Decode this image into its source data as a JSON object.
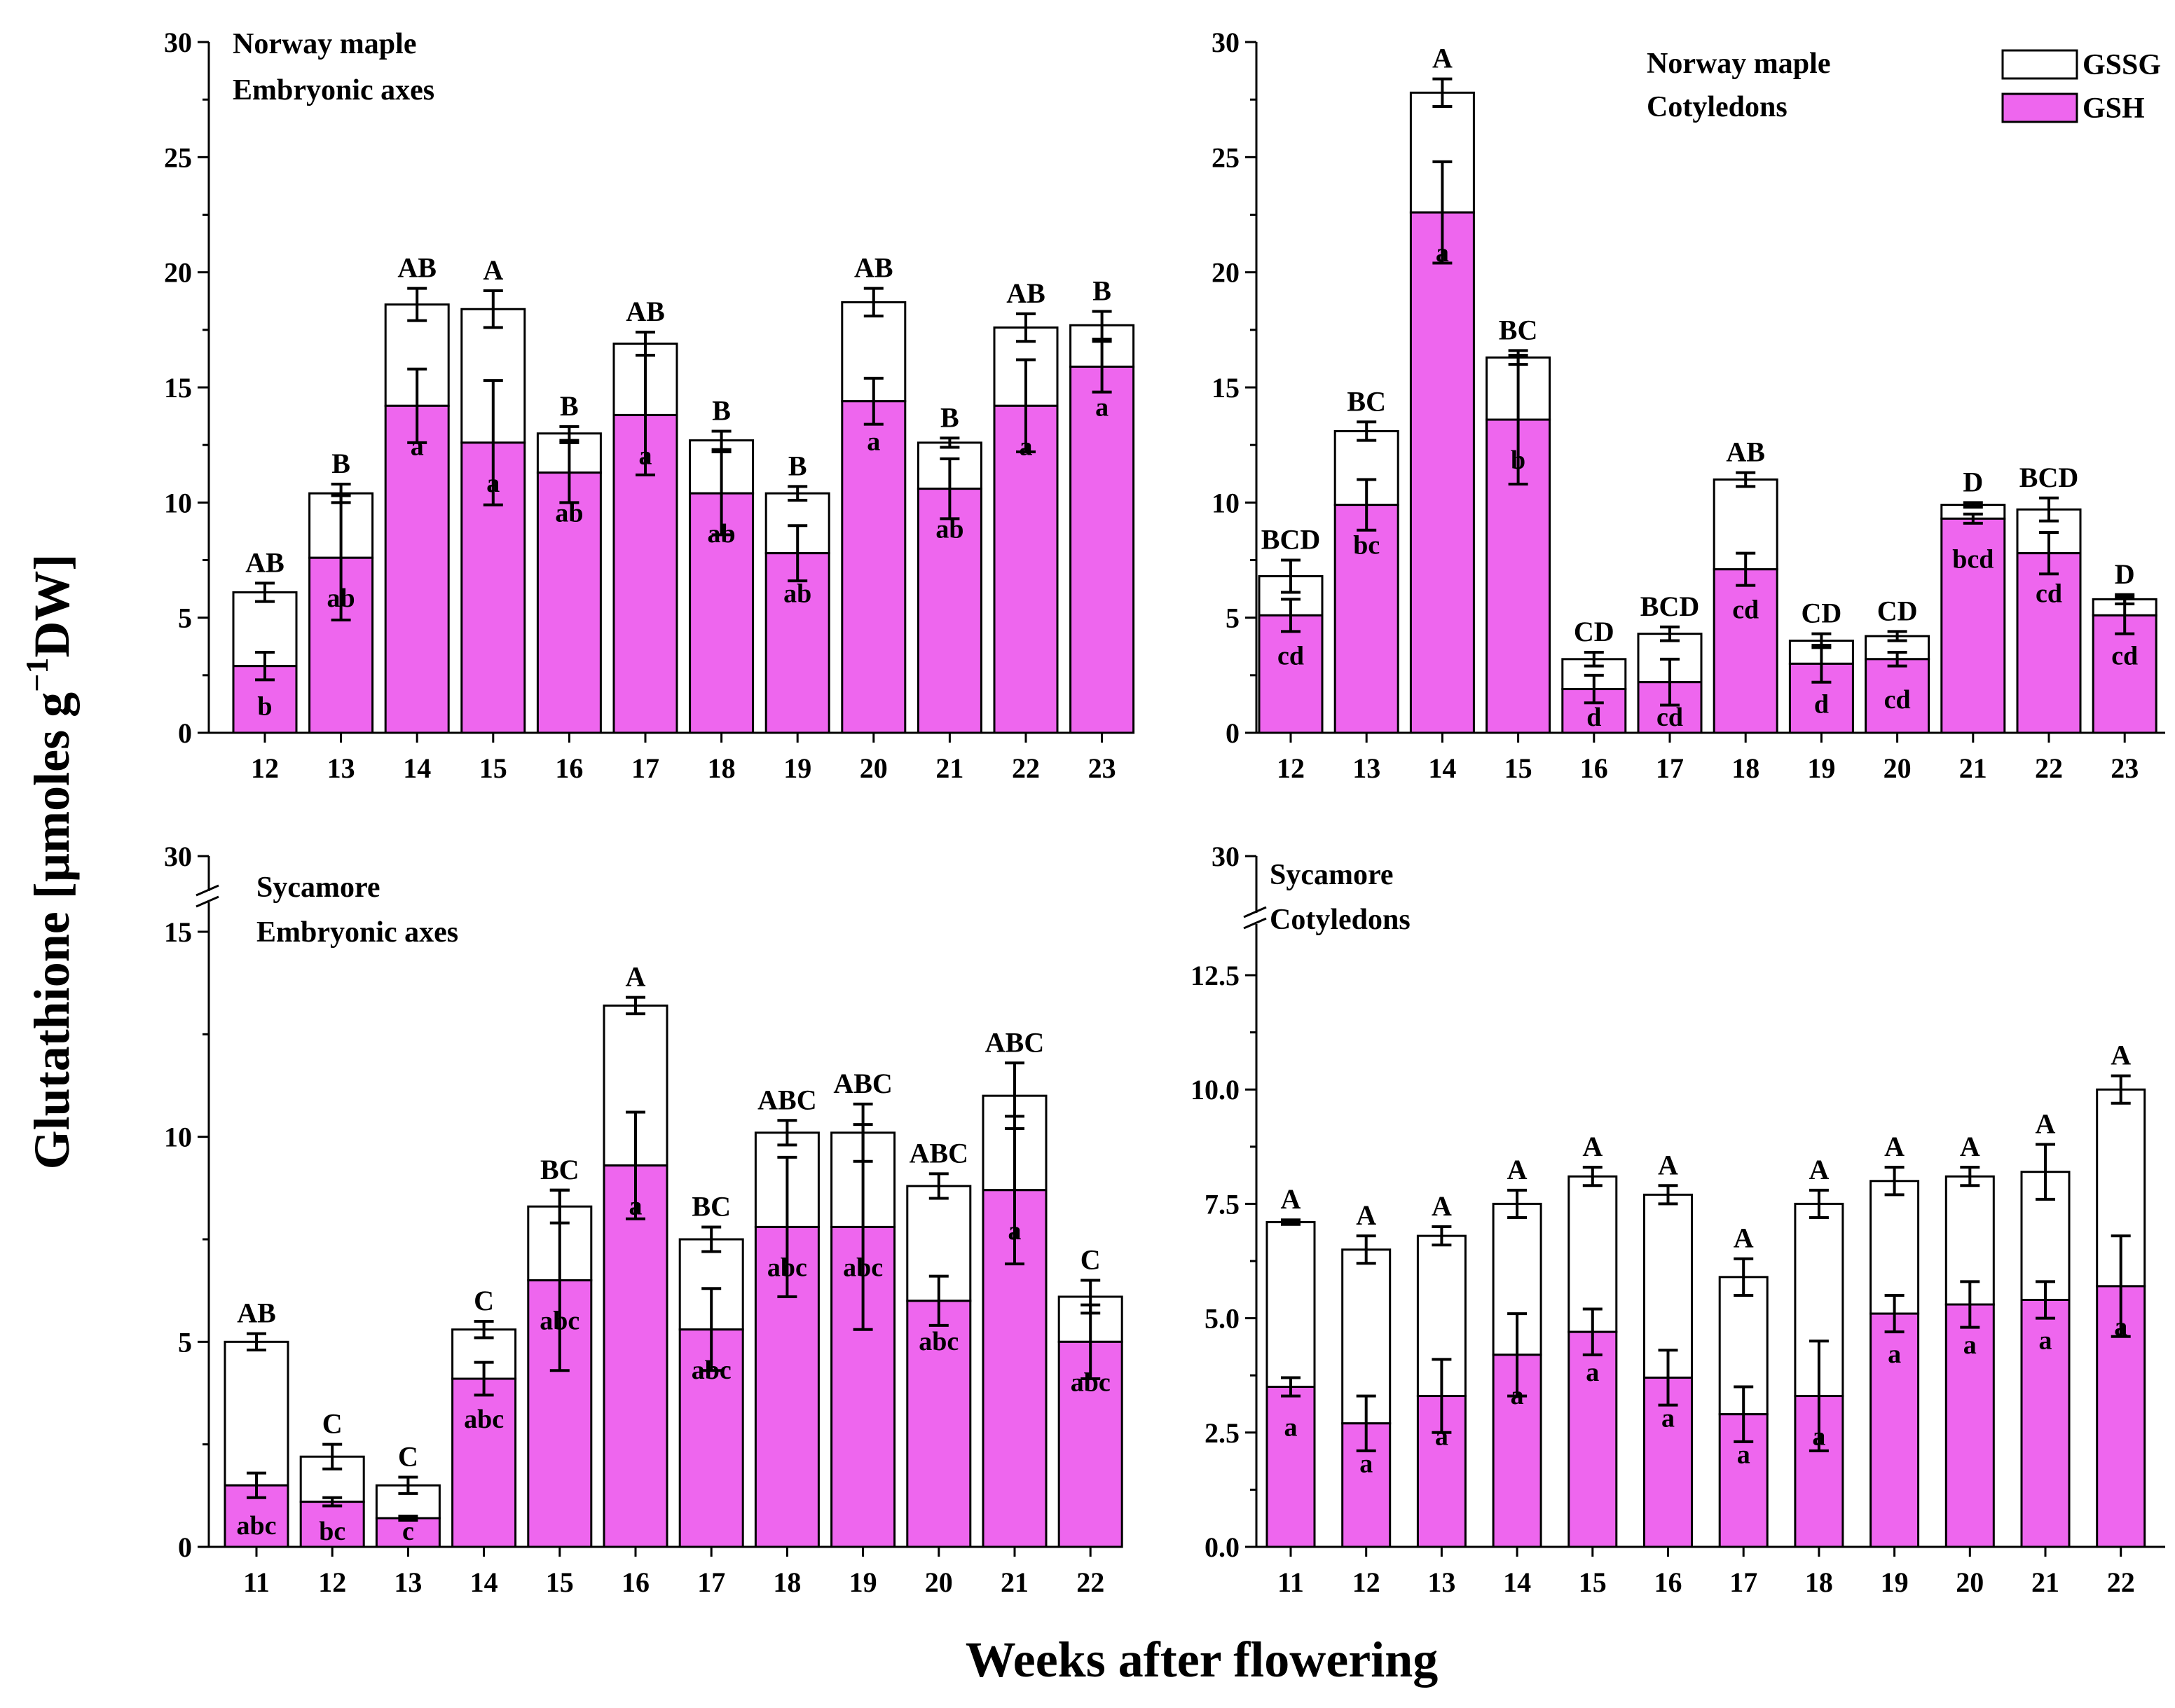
{
  "y_axis_title": {
    "prefix": "Glutathione [µmoles g",
    "sup": "−1",
    "suffix": "DW]"
  },
  "x_axis_title": "Weeks after flowering",
  "legend": {
    "items": [
      {
        "label": "GSSG",
        "color": "#ffffff"
      },
      {
        "label": "GSH",
        "color": "#ee66ee"
      }
    ]
  },
  "colors": {
    "gsh": "#ee66ee",
    "gssg": "#ffffff",
    "axis": "#000000"
  },
  "chart_data": [
    {
      "id": "nm-axes",
      "type": "bar",
      "stacked": true,
      "title": [
        "Norway maple",
        "Embryonic axes"
      ],
      "categories": [
        "12",
        "13",
        "14",
        "15",
        "16",
        "17",
        "18",
        "19",
        "20",
        "21",
        "22",
        "23"
      ],
      "ylim": [
        0,
        30
      ],
      "yticks": [
        0,
        5,
        10,
        15,
        20,
        25,
        30
      ],
      "ytick_labels": [
        "0",
        "5",
        "10",
        "15",
        "20",
        "25",
        "30"
      ],
      "axis_break": false,
      "series": [
        {
          "name": "GSH",
          "values": [
            2.9,
            7.6,
            14.2,
            12.6,
            11.3,
            13.8,
            10.4,
            7.8,
            14.4,
            10.6,
            14.2,
            15.9
          ],
          "errors": [
            0.6,
            2.7,
            1.6,
            2.7,
            1.3,
            2.6,
            1.8,
            1.2,
            1.0,
            1.3,
            2.0,
            1.1
          ],
          "labels": [
            "b",
            "ab",
            "a",
            "a",
            "ab",
            "a",
            "ab",
            "ab",
            "a",
            "ab",
            "a",
            "a"
          ]
        },
        {
          "name": "GSSG",
          "totals": [
            6.1,
            10.4,
            18.6,
            18.4,
            13.0,
            16.9,
            12.7,
            10.4,
            18.7,
            12.6,
            17.6,
            17.7
          ],
          "errors": [
            0.4,
            0.4,
            0.7,
            0.8,
            0.3,
            0.5,
            0.4,
            0.3,
            0.6,
            0.2,
            0.6,
            0.6
          ],
          "labels": [
            "AB",
            "B",
            "AB",
            "A",
            "B",
            "AB",
            "B",
            "B",
            "AB",
            "B",
            "AB",
            "B"
          ]
        }
      ]
    },
    {
      "id": "nm-cot",
      "type": "bar",
      "stacked": true,
      "title": [
        "Norway maple",
        "Cotyledons"
      ],
      "categories": [
        "12",
        "13",
        "14",
        "15",
        "16",
        "17",
        "18",
        "19",
        "20",
        "21",
        "22",
        "23"
      ],
      "ylim": [
        0,
        30
      ],
      "yticks": [
        0,
        5,
        10,
        15,
        20,
        25,
        30
      ],
      "ytick_labels": [
        "0",
        "5",
        "10",
        "15",
        "20",
        "25",
        "30"
      ],
      "axis_break": false,
      "series": [
        {
          "name": "GSH",
          "values": [
            5.1,
            9.9,
            22.6,
            13.6,
            1.9,
            2.2,
            7.1,
            3.0,
            3.2,
            9.3,
            7.8,
            5.1
          ],
          "errors": [
            0.7,
            1.1,
            2.2,
            2.8,
            0.6,
            1.0,
            0.7,
            0.8,
            0.3,
            0.2,
            0.9,
            0.8
          ],
          "labels": [
            "cd",
            "bc",
            "a",
            "b",
            "d",
            "cd",
            "cd",
            "d",
            "cd",
            "bcd",
            "cd",
            "cd"
          ]
        },
        {
          "name": "GSSG",
          "totals": [
            6.8,
            13.1,
            27.8,
            16.3,
            3.2,
            4.3,
            11.0,
            4.0,
            4.2,
            9.9,
            9.7,
            5.8
          ],
          "errors": [
            0.7,
            0.4,
            0.6,
            0.3,
            0.3,
            0.3,
            0.3,
            0.3,
            0.2,
            0.1,
            0.5,
            0.2
          ],
          "labels": [
            "BCD",
            "BC",
            "A",
            "BC",
            "CD",
            "BCD",
            "AB",
            "CD",
            "CD",
            "D",
            "BCD",
            "D"
          ]
        }
      ]
    },
    {
      "id": "sy-axes",
      "type": "bar",
      "stacked": true,
      "title": [
        "Sycamore",
        "Embryonic axes"
      ],
      "categories": [
        "11",
        "12",
        "13",
        "14",
        "15",
        "16",
        "17",
        "18",
        "19",
        "20",
        "21",
        "22"
      ],
      "ylim": [
        0,
        15
      ],
      "yticks": [
        0,
        5,
        10,
        15
      ],
      "ytick_labels": [
        "0",
        "5",
        "10",
        "15"
      ],
      "axis_break": true,
      "break_top_label": "30",
      "series": [
        {
          "name": "GSH",
          "values": [
            1.5,
            1.1,
            0.7,
            4.1,
            6.5,
            9.3,
            5.3,
            7.8,
            7.8,
            6.0,
            8.7,
            5.0
          ],
          "errors": [
            0.3,
            0.1,
            0.05,
            0.4,
            2.2,
            1.3,
            1.0,
            1.7,
            2.5,
            0.6,
            1.8,
            0.9
          ],
          "labels": [
            "abc",
            "bc",
            "c",
            "abc",
            "abc",
            "a",
            "abc",
            "abc",
            "abc",
            "abc",
            "a",
            "abc"
          ]
        },
        {
          "name": "GSSG",
          "totals": [
            5.0,
            2.2,
            1.5,
            5.3,
            8.3,
            13.2,
            7.5,
            10.1,
            10.1,
            8.8,
            11.0,
            6.1
          ],
          "errors": [
            0.2,
            0.3,
            0.2,
            0.2,
            0.4,
            0.2,
            0.3,
            0.3,
            0.7,
            0.3,
            0.8,
            0.4
          ],
          "labels": [
            "AB",
            "C",
            "C",
            "C",
            "BC",
            "A",
            "BC",
            "ABC",
            "ABC",
            "ABC",
            "ABC",
            "C"
          ]
        }
      ]
    },
    {
      "id": "sy-cot",
      "type": "bar",
      "stacked": true,
      "title": [
        "Sycamore",
        "Cotyledons"
      ],
      "categories": [
        "11",
        "12",
        "13",
        "14",
        "15",
        "16",
        "17",
        "18",
        "19",
        "20",
        "21",
        "22"
      ],
      "ylim": [
        0,
        12.5
      ],
      "yticks": [
        0,
        2.5,
        5,
        7.5,
        10,
        12.5
      ],
      "ytick_labels": [
        "0.0",
        "2.5",
        "5.0",
        "7.5",
        "10.0",
        "12.5"
      ],
      "axis_break": true,
      "break_top_label": "30",
      "series": [
        {
          "name": "GSH",
          "values": [
            3.5,
            2.7,
            3.3,
            4.2,
            4.7,
            3.7,
            2.9,
            3.3,
            5.1,
            5.3,
            5.4,
            5.7
          ],
          "errors": [
            0.2,
            0.6,
            0.8,
            0.9,
            0.5,
            0.6,
            0.6,
            1.2,
            0.4,
            0.5,
            0.4,
            1.1
          ],
          "labels": [
            "a",
            "a",
            "a",
            "a",
            "a",
            "a",
            "a",
            "a",
            "a",
            "a",
            "a",
            "a"
          ]
        },
        {
          "name": "GSSG",
          "totals": [
            7.1,
            6.5,
            6.8,
            7.5,
            8.1,
            7.7,
            5.9,
            7.5,
            8.0,
            8.1,
            8.2,
            10.0
          ],
          "errors": [
            0.05,
            0.3,
            0.2,
            0.3,
            0.2,
            0.2,
            0.4,
            0.3,
            0.3,
            0.2,
            0.6,
            0.3
          ],
          "labels": [
            "A",
            "A",
            "A",
            "A",
            "A",
            "A",
            "A",
            "A",
            "A",
            "A",
            "A",
            "A"
          ]
        }
      ]
    }
  ]
}
